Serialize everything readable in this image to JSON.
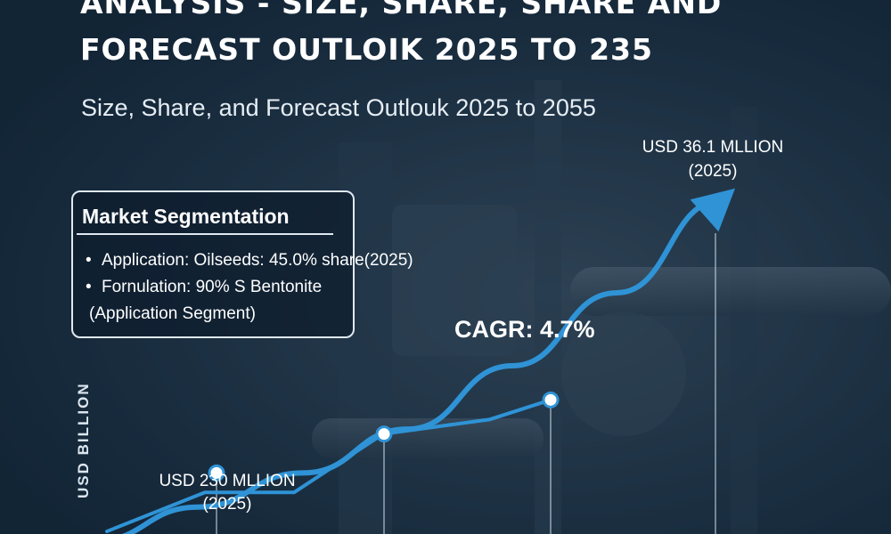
{
  "header": {
    "title_line1": "ANALYSIS - SIZE, SHARE, SHARE AND",
    "title_line2": "FORECAST OUTLOIK 2025 TO 235",
    "subtitle": "Size, Share, and Forecast Outlouk 2025 to 2055"
  },
  "segmentation": {
    "heading": "Market Segmentation",
    "items": [
      "Application: Oilseeds: 45.0% share(2025)",
      "Fornulation: 90% S Bentonite",
      "(Application Segment)"
    ]
  },
  "colors": {
    "background": "#1c3044",
    "line": "#2f93d6",
    "arrow": "#2f93d6",
    "marker_fill": "#ffffff",
    "panel_border": "#dfe8f0"
  },
  "icons": [
    "bullet-dot-icon",
    "upward-arrow-icon"
  ],
  "chart_data": {
    "type": "line",
    "title": "",
    "xlabel": "",
    "ylabel": "USD BILLION",
    "annotations": {
      "cagr": "CAGR: 4.7%",
      "end_value_line1": "USD 36.1 MLLION",
      "end_value_line2": "(2025)",
      "start_value_line1": "USD 230 MLLION",
      "start_value_line2": "(2025)"
    },
    "series": [
      {
        "values": [
          0.0,
          0.7,
          1.4,
          2.3,
          3.6,
          5.1,
          7.0
        ]
      },
      {
        "values": [
          0.2,
          1.0,
          1.0,
          2.2,
          2.5,
          2.9
        ]
      }
    ],
    "grid": false,
    "legend": "none"
  }
}
